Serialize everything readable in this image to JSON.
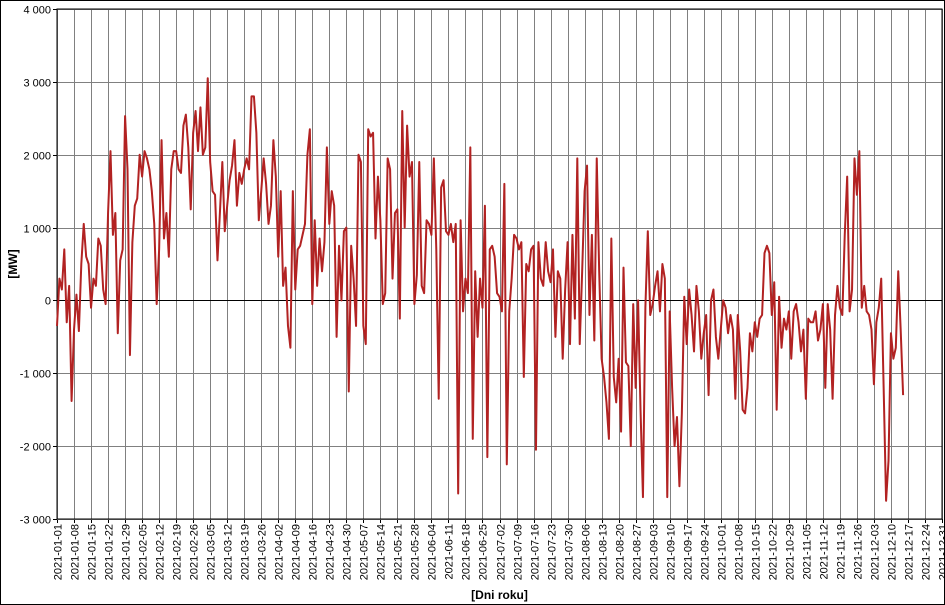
{
  "chart_data": {
    "type": "line",
    "title": "",
    "xlabel": "[Dni roku]",
    "ylabel": "[MW]",
    "ylim": [
      -3000,
      4000
    ],
    "yticks": [
      4000,
      3000,
      2000,
      1000,
      0,
      -1000,
      -2000,
      -3000
    ],
    "ytick_labels": [
      "4 000",
      "3 000",
      "2 000",
      "1 000",
      "0",
      "-1 000",
      "-2 000",
      "-3 000"
    ],
    "xlim": [
      "2021-01-01",
      "2021-12-31"
    ],
    "grid": true,
    "legend": "none",
    "xtick_labels": [
      "2021-01-01",
      "2021-01-08",
      "2021-01-15",
      "2021-01-22",
      "2021-01-29",
      "2021-02-05",
      "2021-02-12",
      "2021-02-19",
      "2021-02-26",
      "2021-03-05",
      "2021-03-12",
      "2021-03-19",
      "2021-03-26",
      "2021-04-02",
      "2021-04-09",
      "2021-04-16",
      "2021-04-23",
      "2021-04-30",
      "2021-05-07",
      "2021-05-14",
      "2021-05-21",
      "2021-05-28",
      "2021-06-04",
      "2021-06-11",
      "2021-06-18",
      "2021-06-25",
      "2021-07-02",
      "2021-07-09",
      "2021-07-16",
      "2021-07-23",
      "2021-07-30",
      "2021-08-06",
      "2021-08-13",
      "2021-08-20",
      "2021-08-27",
      "2021-09-03",
      "2021-09-10",
      "2021-09-17",
      "2021-09-24",
      "2021-10-01",
      "2021-10-08",
      "2021-10-15",
      "2021-10-22",
      "2021-10-29",
      "2021-11-05",
      "2021-11-12",
      "2021-11-19",
      "2021-11-26",
      "2021-12-03",
      "2021-12-10",
      "2021-12-17",
      "2021-12-24",
      "2021-12-31"
    ],
    "series": [
      {
        "name": "",
        "color": "#B22222",
        "x_start": "2021-01-01",
        "x_step_days": 1,
        "values": [
          -350,
          300,
          150,
          700,
          -300,
          200,
          -1380,
          -400,
          80,
          -420,
          500,
          1050,
          600,
          500,
          -100,
          300,
          200,
          850,
          750,
          150,
          -50,
          1200,
          2050,
          900,
          1200,
          -450,
          550,
          700,
          2530,
          1800,
          -750,
          800,
          1300,
          1400,
          2000,
          1700,
          2050,
          1950,
          1800,
          1500,
          1050,
          -50,
          700,
          2200,
          850,
          1200,
          600,
          1800,
          2050,
          2050,
          1800,
          1750,
          2400,
          2550,
          2100,
          1250,
          2300,
          2600,
          2050,
          2650,
          2000,
          2100,
          3050,
          1900,
          1500,
          1450,
          550,
          1200,
          1900,
          950,
          1300,
          1650,
          1850,
          2200,
          1300,
          1750,
          1600,
          1800,
          1950,
          1800,
          2800,
          2800,
          2300,
          1100,
          1500,
          1950,
          1600,
          1050,
          1300,
          2200,
          1700,
          600,
          1500,
          200,
          450,
          -350,
          -650,
          1500,
          150,
          700,
          750,
          900,
          1050,
          2000,
          2350,
          -50,
          1100,
          200,
          850,
          400,
          800,
          2100,
          1050,
          1500,
          1300,
          -500,
          750,
          0,
          950,
          1000,
          -1250,
          750,
          300,
          -350,
          2000,
          1900,
          -350,
          -600,
          2350,
          2250,
          2300,
          850,
          1700,
          1100,
          -50,
          100,
          1950,
          1800,
          300,
          1200,
          1250,
          -250,
          2600,
          1000,
          2400,
          1700,
          1900,
          -50,
          350,
          1900,
          200,
          100,
          1100,
          1050,
          900,
          1950,
          700,
          -1350,
          1550,
          1650,
          950,
          900,
          1050,
          800,
          1050,
          -2650,
          1100,
          -150,
          300,
          100,
          2100,
          -1900,
          400,
          -500,
          300,
          -100,
          1300,
          -2150,
          700,
          750,
          600,
          100,
          50,
          -150,
          1600,
          -2250,
          -150,
          300,
          900,
          850,
          700,
          800,
          -1050,
          500,
          400,
          700,
          750,
          -2050,
          800,
          300,
          200,
          800,
          400,
          250,
          700,
          -500,
          400,
          300,
          -800,
          150,
          800,
          -600,
          900,
          -250,
          1950,
          -600,
          400,
          1500,
          1850,
          -200,
          900,
          -550,
          1950,
          400,
          -800,
          -1050,
          -1400,
          -1900,
          850,
          -1050,
          -1400,
          -800,
          -1800,
          450,
          -850,
          -900,
          -2000,
          -50,
          -1200,
          0,
          -1500,
          -2700,
          -100,
          950,
          -200,
          -50,
          200,
          400,
          -150,
          500,
          300,
          -2700,
          -150,
          -1200,
          -2000,
          -1600,
          -2550,
          -1550,
          50,
          -600,
          150,
          -200,
          -700,
          200,
          -150,
          -800,
          -450,
          -200,
          -1300,
          0,
          150,
          -500,
          -800,
          -400,
          0,
          -100,
          -450,
          -200,
          -400,
          -1350,
          -200,
          -700,
          -1500,
          -1550,
          -1200,
          -450,
          -700,
          -300,
          -500,
          -250,
          -200,
          650,
          750,
          650,
          -200,
          250,
          -1500,
          50,
          -650,
          -250,
          -400,
          -150,
          -800,
          -150,
          -50,
          -300,
          -700,
          -400,
          -1350,
          -250,
          -300,
          -300,
          -150,
          -550,
          -400,
          -50,
          -1200,
          -50,
          -400,
          -1350,
          -200,
          200,
          -100,
          -200,
          900,
          1700,
          -150,
          150,
          1950,
          1450,
          2050,
          -100,
          200,
          -150,
          -200,
          -400,
          -1150,
          -300,
          -100,
          300,
          -1200,
          -2750,
          -2200,
          -450,
          -800,
          -650,
          400,
          -400,
          -1300
        ]
      }
    ]
  }
}
